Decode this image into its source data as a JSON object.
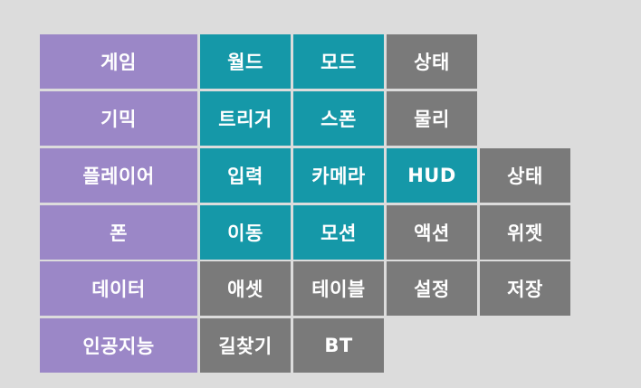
{
  "colors": {
    "category": "#9b87c7",
    "highlight": "#1598a8",
    "neutral": "#7a7a7a",
    "background": "#dcdcdc"
  },
  "rows": [
    {
      "label": "게임",
      "items": [
        {
          "text": "월드",
          "tone": "teal"
        },
        {
          "text": "모드",
          "tone": "teal"
        },
        {
          "text": "상태",
          "tone": "gray"
        }
      ]
    },
    {
      "label": "기믹",
      "items": [
        {
          "text": "트리거",
          "tone": "teal"
        },
        {
          "text": "스폰",
          "tone": "teal"
        },
        {
          "text": "물리",
          "tone": "gray"
        }
      ]
    },
    {
      "label": "플레이어",
      "items": [
        {
          "text": "입력",
          "tone": "teal"
        },
        {
          "text": "카메라",
          "tone": "teal"
        },
        {
          "text": "HUD",
          "tone": "teal"
        },
        {
          "text": "상태",
          "tone": "gray"
        }
      ]
    },
    {
      "label": "폰",
      "items": [
        {
          "text": "이동",
          "tone": "teal"
        },
        {
          "text": "모션",
          "tone": "teal"
        },
        {
          "text": "액션",
          "tone": "gray"
        },
        {
          "text": "위젯",
          "tone": "gray"
        }
      ]
    },
    {
      "label": "데이터",
      "items": [
        {
          "text": "애셋",
          "tone": "gray"
        },
        {
          "text": "테이블",
          "tone": "gray"
        },
        {
          "text": "설정",
          "tone": "gray"
        },
        {
          "text": "저장",
          "tone": "gray"
        }
      ]
    },
    {
      "label": "인공지능",
      "items": [
        {
          "text": "길찾기",
          "tone": "gray"
        },
        {
          "text": "BT",
          "tone": "gray"
        }
      ]
    }
  ]
}
